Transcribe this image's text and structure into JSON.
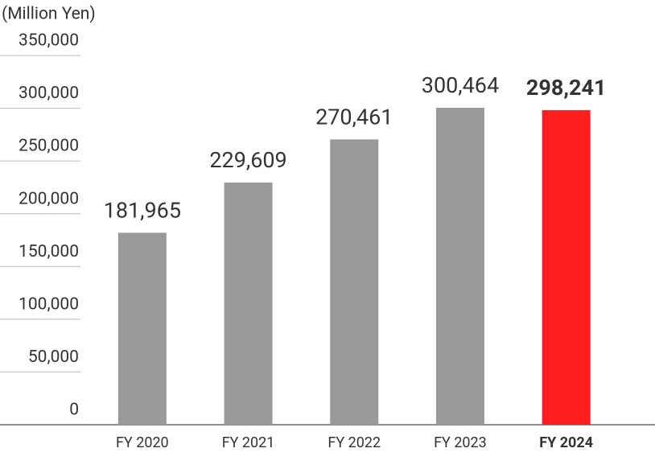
{
  "chart_data": {
    "type": "bar",
    "y_label": "(Million Yen)",
    "categories": [
      "FY 2020",
      "FY 2021",
      "FY 2022",
      "FY 2023",
      "FY 2024"
    ],
    "values": [
      181965,
      229609,
      270461,
      300464,
      298241
    ],
    "value_labels": [
      "181,965",
      "229,609",
      "270,461",
      "300,464",
      "298,241"
    ],
    "colors": [
      "#999999",
      "#999999",
      "#999999",
      "#999999",
      "#ff1f1f"
    ],
    "highlight_color": "#ff1f1f",
    "ylim": [
      0,
      350000
    ],
    "yticks": [
      0,
      {
        "value": 50000,
        "label": "50,000"
      },
      {
        "value": 100000,
        "label": "100,000"
      },
      {
        "value": 150000,
        "label": "150,000"
      },
      {
        "value": 200000,
        "label": "200,000"
      },
      {
        "value": 250000,
        "label": "250,000"
      },
      {
        "value": 300000,
        "label": "300,000"
      },
      {
        "value": 350000,
        "label": "350,000"
      }
    ]
  }
}
